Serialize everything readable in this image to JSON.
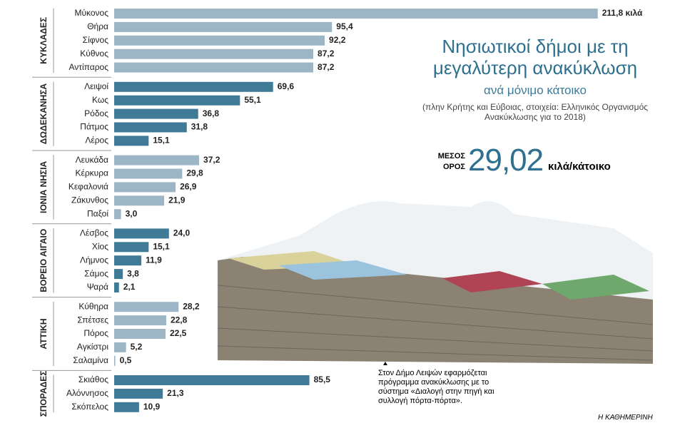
{
  "chart_data": {
    "type": "bar",
    "title": "Νησιωτικοί δήμοι με τη μεγαλύτερη ανακύκλωση",
    "subtitle": "ανά μόνιμο κάτοικο",
    "note": "(πλην Κρήτης και Εύβοιας, στοιχεία: Ελληνικός Οργανισμός Ανακύκλωσης για το 2018)",
    "average": {
      "label": "ΜΕΣΟΣ ΟΡΟΣ",
      "value": 29.02,
      "value_label": "29,02",
      "unit": "κιλά/κάτοικο"
    },
    "caption": "Στον Δήμο Λειψών εφαρμόζεται πρόγραμμα ανακύκλωσης με το σύστημα «Διαλογή στην πηγή και συλλογή πόρτα-πόρτα».",
    "source": "Η ΚΑΘΗΜΕΡΙΝΗ",
    "groups": [
      {
        "name": "ΚΥΚΛΑΔΕΣ",
        "color": "#9db6c6",
        "categories": [
          "Μύκονος",
          "Θήρα",
          "Σίφνος",
          "Κύθνος",
          "Αντίπαρος"
        ],
        "values": [
          211.8,
          95.4,
          92.2,
          87.2,
          87.2
        ],
        "value_labels": [
          "211,8 κιλά",
          "95,4",
          "92,2",
          "87,2",
          "87,2"
        ]
      },
      {
        "name": "ΔΩΔΕΚΑΝΗΣΑ",
        "color": "#3f7b97",
        "categories": [
          "Λειψοί",
          "Κως",
          "Ρόδος",
          "Πάτμος",
          "Λέρος"
        ],
        "values": [
          69.6,
          55.1,
          36.8,
          31.8,
          15.1
        ],
        "value_labels": [
          "69,6",
          "55,1",
          "36,8",
          "31,8",
          "15,1"
        ]
      },
      {
        "name": "ΙΟΝΙΑ ΝΗΣΙΑ",
        "color": "#9db6c6",
        "categories": [
          "Λευκάδα",
          "Κέρκυρα",
          "Κεφαλονιά",
          "Ζάκυνθος",
          "Παξοί"
        ],
        "values": [
          37.2,
          29.8,
          26.9,
          21.9,
          3.0
        ],
        "value_labels": [
          "37,2",
          "29,8",
          "26,9",
          "21,9",
          "3,0"
        ]
      },
      {
        "name": "ΒΟΡΕΙΟ ΑΙΓΑΙΟ",
        "color": "#3f7b97",
        "categories": [
          "Λέσβος",
          "Χίος",
          "Λήμνος",
          "Σάμος",
          "Ψαρά"
        ],
        "values": [
          24.0,
          15.1,
          11.9,
          3.8,
          2.1
        ],
        "value_labels": [
          "24,0",
          "15,1",
          "11,9",
          "3,8",
          "2,1"
        ]
      },
      {
        "name": "ΑΤΤΙΚΗ",
        "color": "#9db6c6",
        "categories": [
          "Κύθηρα",
          "Σπέτσες",
          "Πόρος",
          "Αγκίστρι",
          "Σαλαμίνα"
        ],
        "values": [
          28.2,
          22.8,
          22.5,
          5.2,
          0.5
        ],
        "value_labels": [
          "28,2",
          "22,8",
          "22,5",
          "5,2",
          "0,5"
        ]
      },
      {
        "name": "ΣΠΟΡΑΔΕΣ",
        "color": "#3f7b97",
        "categories": [
          "Σκιάθος",
          "Αλόννησος",
          "Σκόπελος"
        ],
        "values": [
          85.5,
          21.3,
          10.9
        ],
        "value_labels": [
          "85,5",
          "21,3",
          "10,9"
        ]
      }
    ]
  }
}
